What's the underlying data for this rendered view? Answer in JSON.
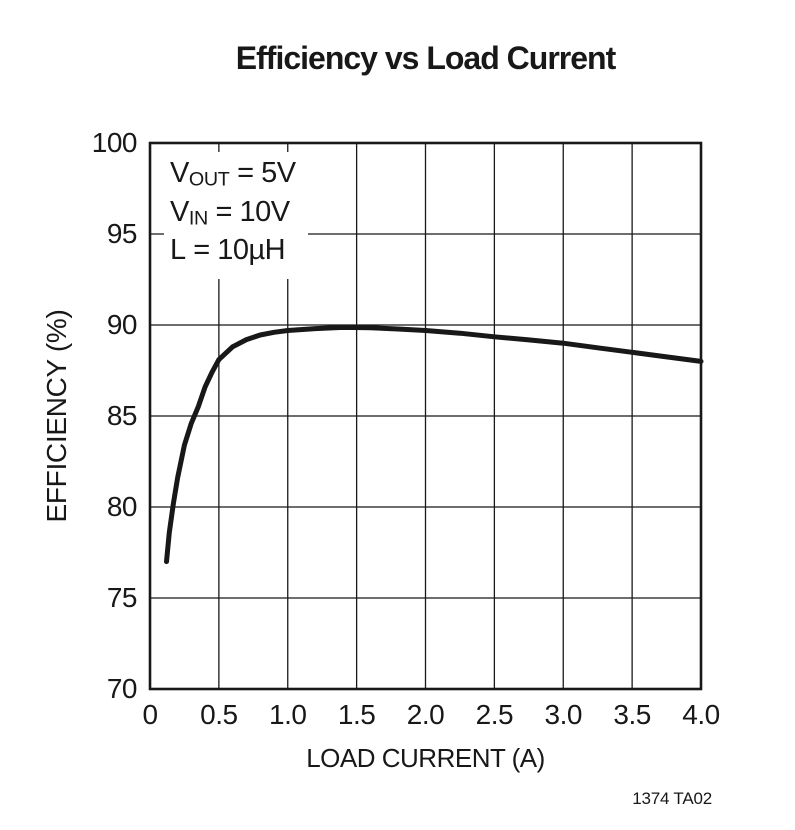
{
  "title": "Efficiency vs Load Current",
  "footer_code": "1374 TA02",
  "annotation": {
    "lines": [
      {
        "sym": "V",
        "sub": "OUT",
        "rest": " = 5V"
      },
      {
        "sym": "V",
        "sub": "IN",
        "rest": " = 10V"
      },
      {
        "sym": "L",
        "sub": "",
        "rest": " = 10µH"
      }
    ]
  },
  "chart_data": {
    "type": "line",
    "title": "Efficiency vs Load Current",
    "xlabel": "LOAD CURRENT (A)",
    "ylabel": "EFFICIENCY (%)",
    "xlim": [
      0,
      4
    ],
    "ylim": [
      70,
      100
    ],
    "x_ticks": [
      0,
      0.5,
      1.0,
      1.5,
      2.0,
      2.5,
      3.0,
      3.5,
      4.0
    ],
    "x_tick_labels": [
      "0",
      "0.5",
      "1.0",
      "1.5",
      "2.0",
      "2.5",
      "3.0",
      "3.5",
      "4.0"
    ],
    "y_ticks": [
      70,
      75,
      80,
      85,
      90,
      95,
      100
    ],
    "y_tick_labels": [
      "70",
      "75",
      "80",
      "85",
      "90",
      "95",
      "100"
    ],
    "grid": true,
    "legend": "none",
    "frame_color": "#181818",
    "grid_color": "#181818",
    "line_color": "#181818",
    "series": [
      {
        "name": "efficiency",
        "points": [
          [
            0.12,
            77.0
          ],
          [
            0.14,
            78.6
          ],
          [
            0.17,
            80.2
          ],
          [
            0.2,
            81.6
          ],
          [
            0.25,
            83.4
          ],
          [
            0.3,
            84.6
          ],
          [
            0.35,
            85.5
          ],
          [
            0.4,
            86.6
          ],
          [
            0.45,
            87.4
          ],
          [
            0.5,
            88.1
          ],
          [
            0.6,
            88.8
          ],
          [
            0.7,
            89.2
          ],
          [
            0.8,
            89.45
          ],
          [
            0.9,
            89.6
          ],
          [
            1.0,
            89.7
          ],
          [
            1.2,
            89.8
          ],
          [
            1.4,
            89.87
          ],
          [
            1.6,
            89.85
          ],
          [
            1.8,
            89.78
          ],
          [
            2.0,
            89.7
          ],
          [
            2.25,
            89.55
          ],
          [
            2.5,
            89.35
          ],
          [
            2.75,
            89.18
          ],
          [
            3.0,
            89.0
          ],
          [
            3.25,
            88.75
          ],
          [
            3.5,
            88.5
          ],
          [
            3.75,
            88.25
          ],
          [
            4.0,
            88.0
          ]
        ]
      }
    ]
  }
}
